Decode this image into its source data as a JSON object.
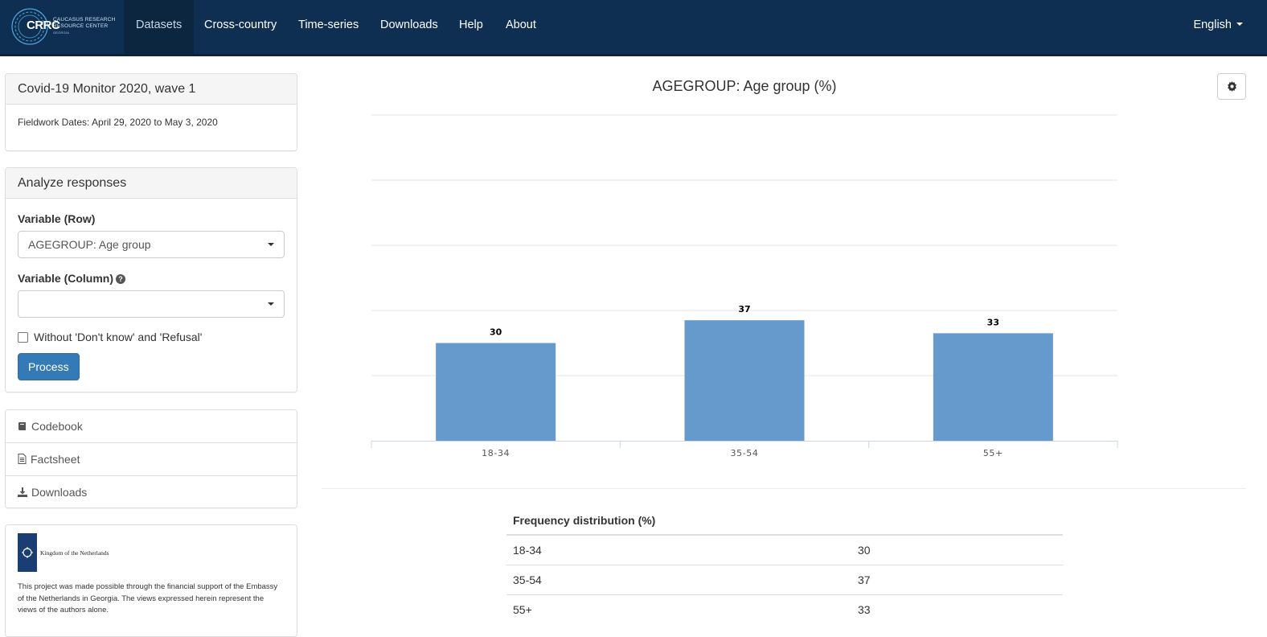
{
  "nav": {
    "brand_name": "CRRC",
    "brand_line1": "CAUCASUS RESEARCH",
    "brand_line2": "RESOURCE CENTER",
    "brand_sub": "GEORGIA",
    "items": [
      {
        "label": "Datasets",
        "active": true
      },
      {
        "label": "Cross-country",
        "active": false
      },
      {
        "label": "Time-series",
        "active": false
      },
      {
        "label": "Downloads",
        "active": false
      },
      {
        "label": "Help",
        "active": false
      },
      {
        "label": "About",
        "active": false
      }
    ],
    "language": "English"
  },
  "dataset": {
    "title": "Covid-19 Monitor 2020, wave 1",
    "fieldwork": "Fieldwork Dates: April 29, 2020 to May 3, 2020"
  },
  "analyze": {
    "heading": "Analyze responses",
    "row_label": "Variable (Row)",
    "row_value": "AGEGROUP: Age group",
    "column_label": "Variable (Column)",
    "column_value": "",
    "help_icon": "question-circle-icon",
    "checkbox_label": "Without 'Don't know' and 'Refusal'",
    "checkbox_checked": false,
    "process_label": "Process"
  },
  "links": [
    {
      "label": "Codebook",
      "icon": "book-icon"
    },
    {
      "label": "Factsheet",
      "icon": "file-text-icon"
    },
    {
      "label": "Downloads",
      "icon": "download-icon"
    }
  ],
  "sponsor": {
    "logo_text": "Kingdom of the Netherlands",
    "note": "This project was made possible through the financial support of the Embassy of the Netherlands in Georgia. The views expressed herein represent the views of the authors alone."
  },
  "settings_icon": "gear-icon",
  "colors": {
    "navbar": "#0f2f52",
    "bar": "#6699cc",
    "primary": "#337ab7"
  },
  "chart_data": {
    "type": "bar",
    "title": "AGEGROUP: Age group (%)",
    "categories": [
      "18-34",
      "35-54",
      "55+"
    ],
    "values": [
      30,
      37,
      33
    ],
    "ylim": [
      0,
      100
    ],
    "grid": true,
    "xlabel": "",
    "ylabel": ""
  },
  "table": {
    "header": "Frequency distribution (%)",
    "rows": [
      {
        "label": "18-34",
        "value": "30"
      },
      {
        "label": "35-54",
        "value": "37"
      },
      {
        "label": "55+",
        "value": "33"
      }
    ]
  }
}
